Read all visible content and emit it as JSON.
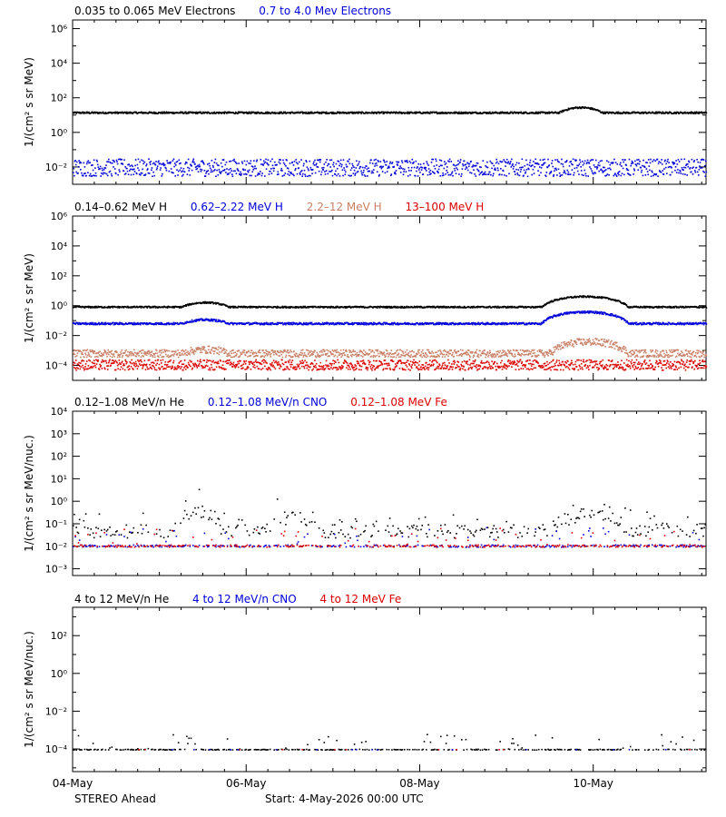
{
  "chart_data": [
    {
      "type": "scatter",
      "scale": "log",
      "ylabel": "1/(cm² s sr MeV)",
      "ylim_exp": [
        -3,
        6.5
      ],
      "yticks": [
        {
          "exp": -2,
          "label": "10⁻²"
        },
        {
          "exp": 0,
          "label": "10⁰"
        },
        {
          "exp": 2,
          "label": "10²"
        },
        {
          "exp": 4,
          "label": "10⁴"
        },
        {
          "exp": 6,
          "label": "10⁶"
        }
      ],
      "series": [
        {
          "name": "0.035 to 0.065 MeV Electrons",
          "color": "#000000",
          "base": 15,
          "spread": 0.05,
          "bumps": [
            [
              5.6,
              6.1,
              2
            ]
          ]
        },
        {
          "name": "0.7 to 4.0 Mev Electrons",
          "color": "#0000dd",
          "base": 0.01,
          "spread": 0.5,
          "bumps": []
        }
      ]
    },
    {
      "type": "scatter",
      "scale": "log",
      "ylabel": "1/(cm² s sr MeV)",
      "ylim_exp": [
        -5,
        6
      ],
      "yticks": [
        {
          "exp": -4,
          "label": "10⁻⁴"
        },
        {
          "exp": -2,
          "label": "10⁻²"
        },
        {
          "exp": 0,
          "label": "10⁰"
        },
        {
          "exp": 2,
          "label": "10²"
        },
        {
          "exp": 4,
          "label": "10⁴"
        },
        {
          "exp": 6,
          "label": "10⁶"
        }
      ],
      "series": [
        {
          "name": "0.14–0.62 MeV H",
          "color": "#000000",
          "base": 0.9,
          "spread": 0.05,
          "bumps": [
            [
              1.25,
              1.8,
              2
            ],
            [
              5.4,
              6.4,
              5
            ]
          ]
        },
        {
          "name": "0.62–2.22 MeV H",
          "color": "#0000dd",
          "base": 0.07,
          "spread": 0.07,
          "bumps": [
            [
              1.25,
              1.8,
              1.8
            ],
            [
              5.4,
              6.4,
              6
            ]
          ]
        },
        {
          "name": "2.2–12 MeV H",
          "color": "#c87f65",
          "base": 0.0007,
          "spread": 0.25,
          "bumps": [
            [
              1.25,
              1.8,
              1.8
            ],
            [
              5.5,
              6.4,
              6
            ]
          ]
        },
        {
          "name": "13–100 MeV H",
          "color": "#dd0000",
          "base": 0.00012,
          "spread": 0.35,
          "bumps": []
        }
      ]
    },
    {
      "type": "scatter",
      "scale": "log",
      "ylabel": "1/(cm² s sr MeV/nuc.)",
      "ylim_exp": [
        -3.3,
        4
      ],
      "yticks": [
        {
          "exp": -3,
          "label": "10⁻³"
        },
        {
          "exp": -2,
          "label": "10⁻²"
        },
        {
          "exp": -1,
          "label": "10⁻¹"
        },
        {
          "exp": 0,
          "label": "10⁰"
        },
        {
          "exp": 1,
          "label": "10¹"
        },
        {
          "exp": 2,
          "label": "10²"
        },
        {
          "exp": 3,
          "label": "10³"
        },
        {
          "exp": 4,
          "label": "10⁴"
        }
      ],
      "series": [
        {
          "name": "0.12–1.08 MeV/n He",
          "color": "#000000",
          "base": 0.05,
          "spread": 0.3,
          "bumps": [
            [
              1.2,
              1.7,
              8
            ],
            [
              2.2,
              2.9,
              4
            ],
            [
              5.5,
              6.4,
              5
            ]
          ],
          "sparse": true
        },
        {
          "name": "0.12–1.08 MeV/n CNO",
          "color": "#0000dd",
          "base": 0.011,
          "spread": 0.05,
          "bumps": [],
          "sparse": true
        },
        {
          "name": "0.12–1.08 MeV Fe",
          "color": "#dd0000",
          "base": 0.011,
          "spread": 0.05,
          "bumps": [],
          "sparse": true
        }
      ]
    },
    {
      "type": "scatter",
      "scale": "log",
      "ylabel": "1/(cm² s sr MeV/nuc.)",
      "ylim_exp": [
        -5.2,
        3.5
      ],
      "yticks": [
        {
          "exp": -4,
          "label": "10⁻⁴"
        },
        {
          "exp": -2,
          "label": "10⁻²"
        },
        {
          "exp": 0,
          "label": "10⁰"
        },
        {
          "exp": 2,
          "label": "10²"
        }
      ],
      "series": [
        {
          "name": "4 to 12 MeV/n He",
          "color": "#000000",
          "base": 0.0001,
          "spread": 0.02,
          "bumps": [],
          "sparse": true
        },
        {
          "name": "4 to 12 MeV/n CNO",
          "color": "#0000dd",
          "base": 0.0001,
          "spread": 0.0,
          "bumps": [],
          "sparse": true,
          "few": true
        },
        {
          "name": "4 to 12 MeV Fe",
          "color": "#dd0000",
          "base": 0.0001,
          "spread": 0.0,
          "bumps": [],
          "sparse": true,
          "few": true
        }
      ]
    }
  ],
  "x_axis": {
    "range_days": [
      0,
      7.3
    ],
    "ticks": [
      {
        "day": 0,
        "label": "04-May"
      },
      {
        "day": 2,
        "label": "06-May"
      },
      {
        "day": 4,
        "label": "08-May"
      },
      {
        "day": 6,
        "label": "10-May"
      }
    ]
  },
  "footer": {
    "spacecraft": "STEREO Ahead",
    "start": "Start:  4-May-2026 00:00 UTC"
  }
}
